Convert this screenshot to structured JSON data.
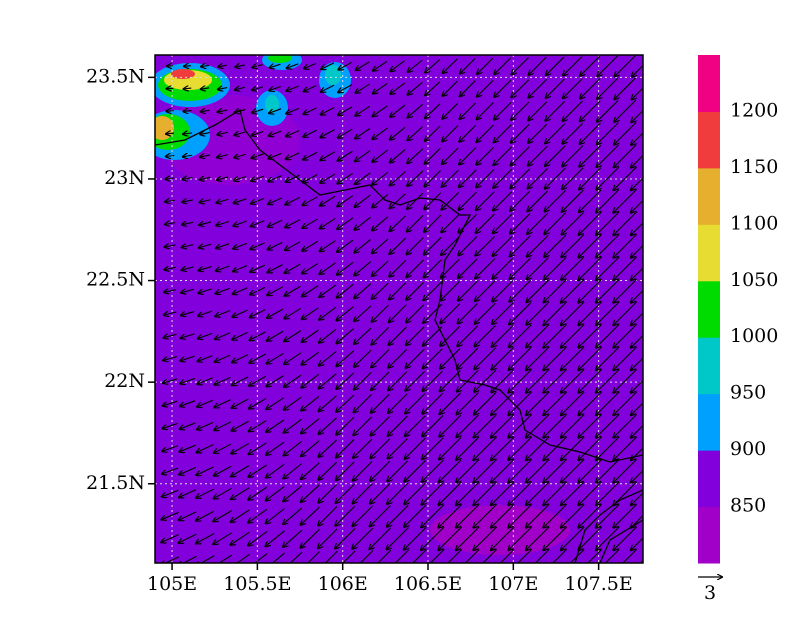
{
  "map": {
    "xticks": [
      {
        "value": 105,
        "label": "105E"
      },
      {
        "value": 105.5,
        "label": "105.5E"
      },
      {
        "value": 106,
        "label": "106E"
      },
      {
        "value": 106.5,
        "label": "106.5E"
      },
      {
        "value": 107,
        "label": "107E"
      },
      {
        "value": 107.5,
        "label": "107.5E"
      }
    ],
    "yticks": [
      {
        "value": 21.5,
        "label": "21.5N"
      },
      {
        "value": 22,
        "label": "22N"
      },
      {
        "value": 22.5,
        "label": "22.5N"
      },
      {
        "value": 23,
        "label": "23N"
      },
      {
        "value": 23.5,
        "label": "23.5N"
      }
    ],
    "xlim": [
      104.9,
      107.76
    ],
    "ylim": [
      21.11,
      23.61
    ],
    "grid": true,
    "colorbar": {
      "levels": [
        850,
        900,
        950,
        1000,
        1050,
        1100,
        1150,
        1200
      ],
      "colors": [
        "#a000c8",
        "#8200dc",
        "#00a0ff",
        "#00c8c8",
        "#00dc00",
        "#e6dc32",
        "#e6af2d",
        "#f03c3c",
        "#f00082"
      ]
    },
    "reference_vector": 3
  }
}
